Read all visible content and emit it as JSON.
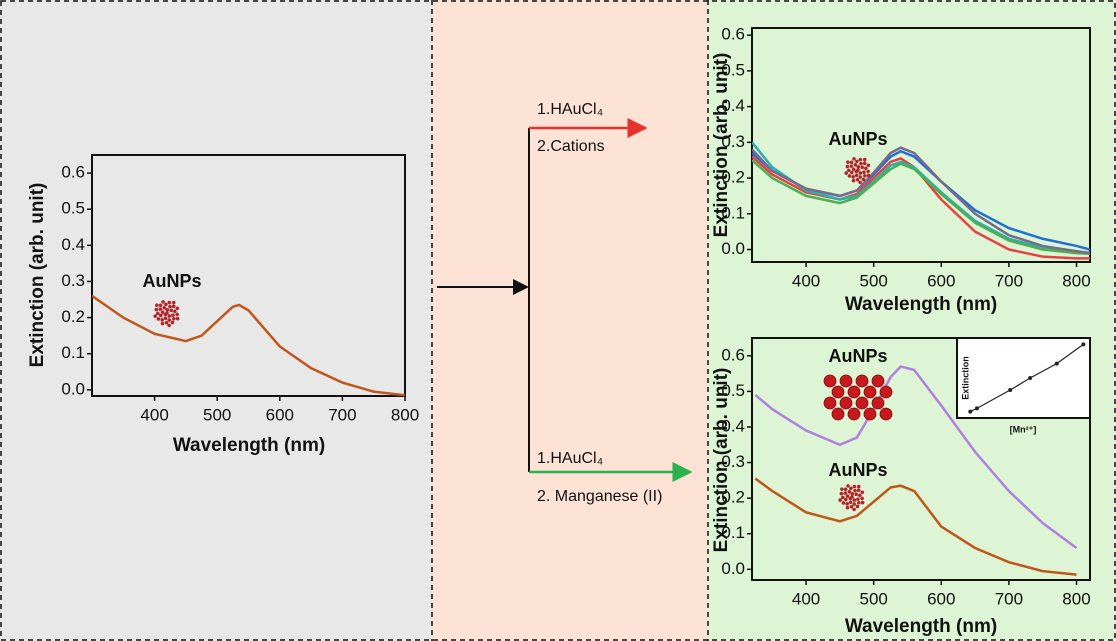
{
  "chart_data": [
    {
      "type": "line",
      "x_label": "Wavelength (nm)",
      "y_label": "Extinction (arb. unit)",
      "annotations": [
        "AuNPs"
      ],
      "x": [
        300,
        350,
        400,
        450,
        475,
        500,
        525,
        535,
        550,
        575,
        600,
        650,
        700,
        750,
        800
      ],
      "values": [
        0.26,
        0.2,
        0.155,
        0.135,
        0.15,
        0.19,
        0.23,
        0.235,
        0.22,
        0.17,
        0.12,
        0.06,
        0.02,
        -0.005,
        -0.015
      ],
      "color": "#c0561a",
      "xlim": [
        300,
        800
      ],
      "ylim": [
        -0.017,
        0.65
      ],
      "xticks": [
        400,
        500,
        600,
        700,
        800
      ],
      "yticks": [
        {
          "value": 0,
          "label": "0.0"
        },
        0.1,
        0.2,
        0.3,
        0.4,
        0.5,
        0.6
      ]
    },
    {
      "type": "line",
      "x_label": "Wavelength (nm)",
      "y_label": "Extinction (arb. unit)",
      "annotations": [
        "AuNPs"
      ],
      "x": [
        320,
        350,
        400,
        450,
        475,
        500,
        525,
        540,
        560,
        600,
        650,
        700,
        750,
        800,
        820
      ],
      "series": [
        {
          "color": "#1f6fd4",
          "values": [
            0.27,
            0.22,
            0.17,
            0.15,
            0.165,
            0.21,
            0.26,
            0.275,
            0.26,
            0.19,
            0.11,
            0.06,
            0.03,
            0.01,
            0.0
          ]
        },
        {
          "color": "#e84040",
          "values": [
            0.26,
            0.21,
            0.16,
            0.14,
            0.155,
            0.2,
            0.245,
            0.255,
            0.23,
            0.14,
            0.05,
            0.0,
            -0.02,
            -0.025,
            -0.025
          ]
        },
        {
          "color": "#2ab0b0",
          "values": [
            0.3,
            0.23,
            0.165,
            0.14,
            0.15,
            0.19,
            0.235,
            0.245,
            0.23,
            0.16,
            0.08,
            0.03,
            0.005,
            -0.005,
            -0.01
          ]
        },
        {
          "color": "#4caf50",
          "values": [
            0.25,
            0.2,
            0.15,
            0.13,
            0.145,
            0.185,
            0.225,
            0.24,
            0.225,
            0.155,
            0.075,
            0.025,
            0.0,
            -0.01,
            -0.012
          ]
        },
        {
          "color": "#7a6a8a",
          "values": [
            0.28,
            0.22,
            0.17,
            0.15,
            0.165,
            0.215,
            0.27,
            0.285,
            0.27,
            0.19,
            0.1,
            0.04,
            0.01,
            -0.005,
            -0.01
          ]
        }
      ],
      "xlim": [
        320,
        820
      ],
      "ylim": [
        -0.035,
        0.62
      ],
      "xticks": [
        400,
        500,
        600,
        700,
        800
      ],
      "yticks": [
        {
          "value": 0,
          "label": "0.0"
        },
        0.1,
        0.2,
        0.3,
        0.4,
        0.5,
        0.6
      ]
    },
    {
      "type": "line",
      "x_label": "Wavelength (nm)",
      "y_label": "Extinction (arb. unit)",
      "annotations": [
        "AuNPs",
        "AuNPs"
      ],
      "x": [
        325,
        350,
        400,
        450,
        475,
        500,
        525,
        540,
        560,
        600,
        650,
        700,
        750,
        800
      ],
      "series": [
        {
          "color": "#b07fe0",
          "values": [
            0.49,
            0.45,
            0.39,
            0.35,
            0.37,
            0.45,
            0.54,
            0.57,
            0.56,
            0.46,
            0.33,
            0.22,
            0.13,
            0.06
          ]
        },
        {
          "color": "#c0561a",
          "values": [
            0.255,
            0.22,
            0.16,
            0.135,
            0.15,
            0.19,
            0.23,
            0.235,
            0.22,
            0.12,
            0.06,
            0.02,
            -0.005,
            -0.015
          ]
        }
      ],
      "xlim": [
        320,
        820
      ],
      "ylim": [
        -0.03,
        0.65
      ],
      "xticks": [
        400,
        500,
        600,
        700,
        800
      ],
      "yticks": [
        {
          "value": 0,
          "label": "0.0"
        },
        0.1,
        0.2,
        0.3,
        0.4,
        0.5,
        0.6
      ]
    },
    {
      "type": "scatter",
      "x_label": "[Mn²⁺]",
      "y_label": "Extinction",
      "x": [
        0.1,
        0.15,
        0.4,
        0.55,
        0.75,
        0.95
      ],
      "values": [
        0.08,
        0.12,
        0.35,
        0.5,
        0.68,
        0.92
      ],
      "color": "#222",
      "xlim": [
        0,
        1
      ],
      "ylim": [
        0,
        1
      ]
    }
  ],
  "steps": {
    "top": [
      "1.HAuCl₄",
      "2.Cations"
    ],
    "bottom": [
      "1.HAuCl₄",
      "2. Manganese (II)"
    ]
  }
}
